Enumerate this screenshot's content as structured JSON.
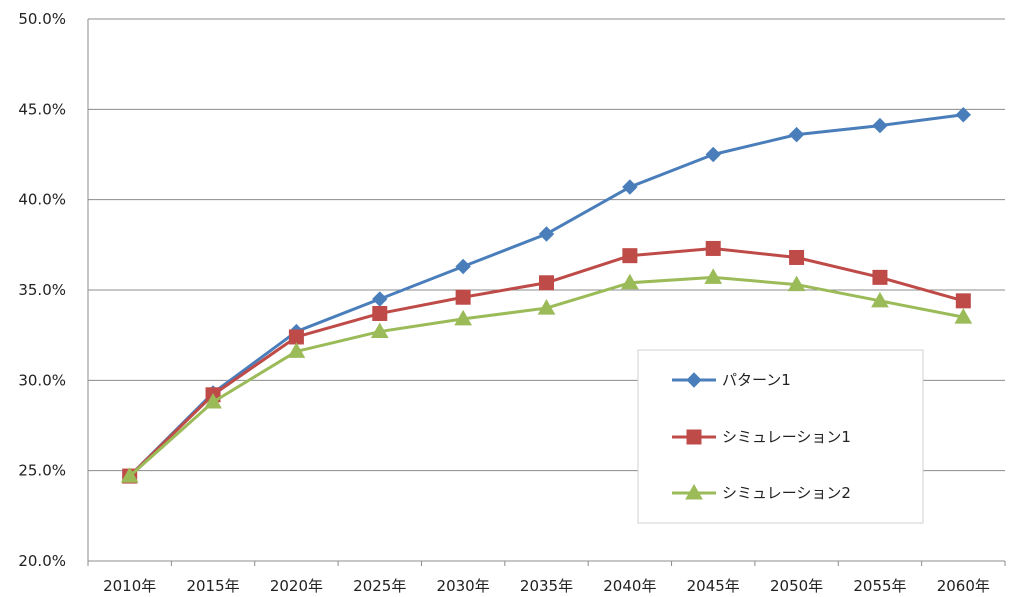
{
  "chart_data": {
    "type": "line",
    "categories": [
      "2010年",
      "2015年",
      "2020年",
      "2025年",
      "2030年",
      "2035年",
      "2040年",
      "2045年",
      "2050年",
      "2055年",
      "2060年"
    ],
    "ylim": [
      20.0,
      50.0
    ],
    "yticks": [
      "20.0%",
      "25.0%",
      "30.0%",
      "35.0%",
      "40.0%",
      "45.0%",
      "50.0%"
    ],
    "ytick_values": [
      20,
      25,
      30,
      35,
      40,
      45,
      50
    ],
    "grid": "horizontal",
    "legend_position": "right-inside",
    "series": [
      {
        "name": "パターン1",
        "color": "#4a7ebb",
        "marker": "diamond",
        "values": [
          24.7,
          29.3,
          32.7,
          34.5,
          36.3,
          38.1,
          40.7,
          42.5,
          43.6,
          44.1,
          44.7
        ]
      },
      {
        "name": "シミュレーション1",
        "color": "#be4b48",
        "marker": "square",
        "values": [
          24.7,
          29.2,
          32.4,
          33.7,
          34.6,
          35.4,
          36.9,
          37.3,
          36.8,
          35.7,
          34.4
        ]
      },
      {
        "name": "シミュレーション2",
        "color": "#9bbb59",
        "marker": "triangle",
        "values": [
          24.7,
          28.8,
          31.6,
          32.7,
          33.4,
          34.0,
          35.4,
          35.7,
          35.3,
          34.4,
          33.5
        ]
      }
    ]
  }
}
